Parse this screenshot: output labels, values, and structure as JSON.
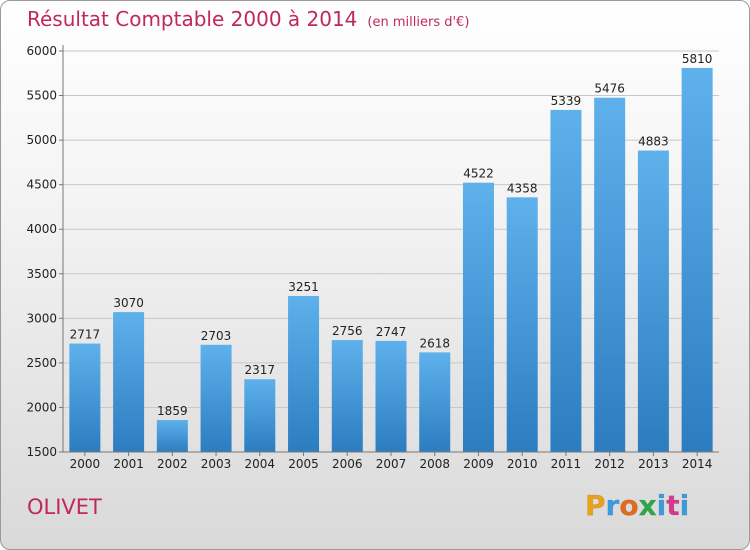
{
  "header": {
    "title": "Résultat Comptable 2000 à 2014",
    "subtitle": "(en milliers d'€)"
  },
  "footer": {
    "commune": "OLIVET",
    "logo_letters": [
      "P",
      "r",
      "o",
      "x",
      "i",
      "t",
      "i"
    ],
    "logo_colors": [
      "#e8a21a",
      "#3a9be0",
      "#e36a1c",
      "#2aa84a",
      "#3a9be0",
      "#d43a8f",
      "#3a9be0"
    ]
  },
  "colors": {
    "bar_light": "#5fb1ec",
    "bar_dark": "#2b7dc0",
    "title": "#c0285a",
    "grid": "#c8c8c8"
  },
  "chart_data": {
    "type": "bar",
    "title": "Résultat Comptable 2000 à 2014",
    "subtitle": "(en milliers d'€)",
    "categories": [
      "2000",
      "2001",
      "2002",
      "2003",
      "2004",
      "2005",
      "2006",
      "2007",
      "2008",
      "2009",
      "2010",
      "2011",
      "2012",
      "2013",
      "2014"
    ],
    "values": [
      2717,
      3070,
      1859,
      2703,
      2317,
      3251,
      2756,
      2747,
      2618,
      4522,
      4358,
      5339,
      5476,
      4883,
      5810
    ],
    "ylim": [
      1500,
      6000
    ],
    "yticks": [
      1500,
      2000,
      2500,
      3000,
      3500,
      4000,
      4500,
      5000,
      5500,
      6000
    ],
    "grid": true,
    "data_labels": true
  }
}
